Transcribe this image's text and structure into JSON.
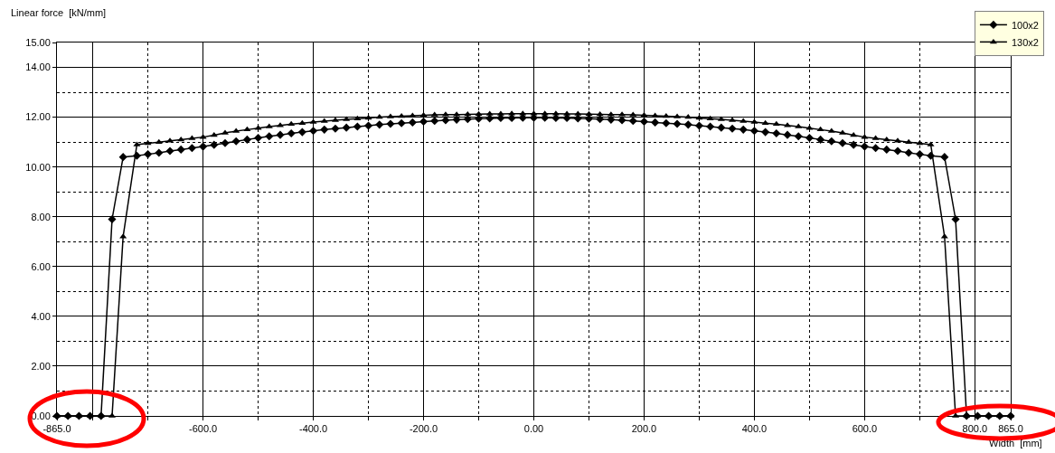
{
  "chart_data": {
    "type": "line",
    "ylabel": "Linear force  [kN/mm]",
    "xlabel": "Width  [mm]",
    "x": [
      -865,
      -845,
      -825,
      -805,
      -785,
      -765,
      -745,
      -720,
      -700,
      -680,
      -660,
      -640,
      -620,
      -600,
      -580,
      -560,
      -540,
      -520,
      -500,
      -480,
      -460,
      -440,
      -420,
      -400,
      -380,
      -360,
      -340,
      -320,
      -300,
      -280,
      -260,
      -240,
      -220,
      -200,
      -180,
      -160,
      -140,
      -120,
      -100,
      -80,
      -60,
      -40,
      -20,
      0,
      20,
      40,
      60,
      80,
      100,
      120,
      140,
      160,
      180,
      200,
      220,
      240,
      260,
      280,
      300,
      320,
      340,
      360,
      380,
      400,
      420,
      440,
      460,
      480,
      500,
      520,
      540,
      560,
      580,
      600,
      620,
      640,
      660,
      680,
      700,
      720,
      745,
      765,
      785,
      805,
      825,
      845,
      865
    ],
    "series": [
      {
        "name": "100x2",
        "color": "#000000",
        "marker": "diamond",
        "values": [
          0,
          0,
          0,
          0,
          0,
          7.9,
          10.4,
          10.45,
          10.51,
          10.57,
          10.64,
          10.7,
          10.76,
          10.82,
          10.89,
          10.96,
          11.03,
          11.1,
          11.17,
          11.23,
          11.29,
          11.35,
          11.4,
          11.45,
          11.5,
          11.54,
          11.58,
          11.62,
          11.66,
          11.7,
          11.73,
          11.76,
          11.79,
          11.82,
          11.85,
          11.88,
          11.9,
          11.92,
          11.94,
          11.95,
          11.97,
          11.97,
          11.98,
          11.98,
          11.98,
          11.97,
          11.97,
          11.95,
          11.94,
          11.92,
          11.9,
          11.88,
          11.85,
          11.82,
          11.79,
          11.76,
          11.73,
          11.7,
          11.66,
          11.62,
          11.58,
          11.54,
          11.5,
          11.45,
          11.4,
          11.35,
          11.29,
          11.23,
          11.17,
          11.1,
          11.03,
          10.96,
          10.89,
          10.82,
          10.76,
          10.7,
          10.64,
          10.57,
          10.51,
          10.45,
          10.4,
          7.9,
          0,
          0,
          0,
          0,
          0
        ]
      },
      {
        "name": "130x2",
        "color": "#000000",
        "marker": "triangle",
        "values": [
          0,
          0,
          0,
          0,
          0,
          0,
          7.2,
          10.9,
          10.95,
          11.0,
          11.05,
          11.1,
          11.15,
          11.2,
          11.28,
          11.37,
          11.44,
          11.5,
          11.56,
          11.62,
          11.67,
          11.72,
          11.76,
          11.8,
          11.84,
          11.88,
          11.91,
          11.94,
          11.97,
          12.0,
          12.02,
          12.04,
          12.06,
          12.08,
          12.09,
          12.1,
          12.1,
          12.11,
          12.12,
          12.13,
          12.13,
          12.14,
          12.14,
          12.14,
          12.14,
          12.14,
          12.13,
          12.13,
          12.12,
          12.11,
          12.1,
          12.1,
          12.09,
          12.08,
          12.06,
          12.04,
          12.02,
          12.0,
          11.97,
          11.94,
          11.91,
          11.88,
          11.84,
          11.8,
          11.76,
          11.72,
          11.67,
          11.62,
          11.56,
          11.5,
          11.44,
          11.37,
          11.28,
          11.2,
          11.15,
          11.1,
          11.05,
          11.0,
          10.95,
          10.9,
          7.2,
          0,
          0,
          0,
          0,
          0,
          0
        ]
      }
    ],
    "xlim": [
      -865,
      865
    ],
    "xticks": [
      {
        "value": -865,
        "label": "-865.0"
      },
      {
        "value": -800,
        "label": null
      },
      {
        "value": -600,
        "label": "-600.0"
      },
      {
        "value": -400,
        "label": "-400.0"
      },
      {
        "value": -200,
        "label": "-200.0"
      },
      {
        "value": 0,
        "label": "0.00"
      },
      {
        "value": 200,
        "label": "200.0"
      },
      {
        "value": 400,
        "label": "400.0"
      },
      {
        "value": 600,
        "label": "600.0"
      },
      {
        "value": 800,
        "label": "800.0"
      },
      {
        "value": 865,
        "label": "865.0"
      }
    ],
    "ylim": [
      0,
      15
    ],
    "yticks": [
      {
        "value": 0,
        "label": "0.00"
      },
      {
        "value": 2,
        "label": "2.00"
      },
      {
        "value": 4,
        "label": "4.00"
      },
      {
        "value": 6,
        "label": "6.00"
      },
      {
        "value": 8,
        "label": "8.00"
      },
      {
        "value": 10,
        "label": "10.00"
      },
      {
        "value": 12,
        "label": "12.00"
      },
      {
        "value": 14,
        "label": "14.00"
      },
      {
        "value": 15,
        "label": "15.00"
      }
    ],
    "grid": true,
    "legend": "top right",
    "line_style": "solid"
  }
}
